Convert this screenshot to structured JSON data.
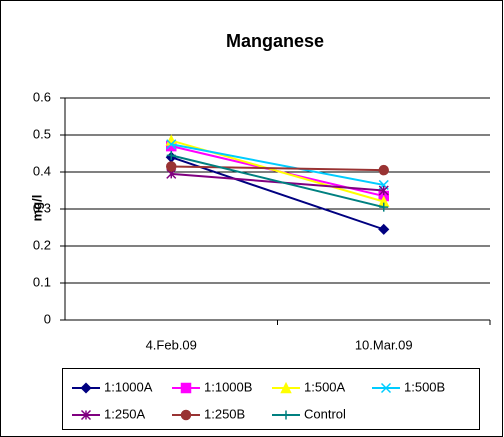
{
  "chart_data": {
    "type": "line",
    "title": "Manganese",
    "y_label": "mg/l",
    "categories": [
      "4.Feb.09",
      "10.Mar.09"
    ],
    "ylim": [
      0,
      0.6
    ],
    "yticks": [
      0,
      0.1,
      0.2,
      0.3,
      0.4,
      0.5,
      0.6
    ],
    "grid": true,
    "series": [
      {
        "name": "1:1000A",
        "color": "#000080",
        "marker": "diamond",
        "values": [
          0.44,
          0.245
        ]
      },
      {
        "name": "1:1000B",
        "color": "#ff00ff",
        "marker": "square",
        "values": [
          0.47,
          0.335
        ]
      },
      {
        "name": "1:500A",
        "color": "#ffff00",
        "marker": "triangle",
        "values": [
          0.485,
          0.32
        ]
      },
      {
        "name": "1:500B",
        "color": "#00ccff",
        "marker": "x",
        "values": [
          0.475,
          0.365
        ]
      },
      {
        "name": "1:250A",
        "color": "#800080",
        "marker": "star",
        "values": [
          0.395,
          0.35
        ]
      },
      {
        "name": "1:250B",
        "color": "#993333",
        "marker": "circle",
        "values": [
          0.415,
          0.405
        ]
      },
      {
        "name": "Control",
        "color": "#008080",
        "marker": "plus",
        "values": [
          0.445,
          0.305
        ]
      }
    ]
  }
}
